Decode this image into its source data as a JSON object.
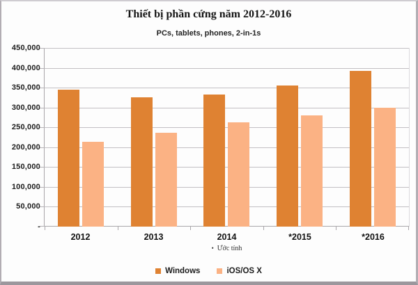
{
  "chart_data": {
    "type": "bar",
    "title": "Thiết bị phần cứng năm 2012-2016",
    "subtitle": "PCs, tablets, phones, 2-in-1s",
    "categories": [
      "2012",
      "2013",
      "2014",
      "*2015",
      "*2016"
    ],
    "series": [
      {
        "name": "Windows",
        "color": "#df8232",
        "values": [
          345000,
          326000,
          333000,
          355000,
          393000
        ]
      },
      {
        "name": "iOS/OS X",
        "color": "#fbb284",
        "values": [
          213000,
          236000,
          263000,
          281000,
          299000
        ]
      }
    ],
    "xlabel": "",
    "ylabel": "",
    "ylim": [
      0,
      450000
    ],
    "ytick_interval": 50000,
    "ytick_labels_top_to_bottom": [
      "450,000",
      "400,000",
      "350,000",
      "300,000",
      "250,000",
      "200,000",
      "150,000",
      "100,000",
      "50,000",
      "-"
    ],
    "grid": true,
    "legend_position": "bottom",
    "note_bullet": "•",
    "note_text": "Ước tính",
    "colors": {
      "gridline": "#c2bfc3",
      "axis": "#a9a6aa",
      "text": "#1b1b1b"
    }
  }
}
